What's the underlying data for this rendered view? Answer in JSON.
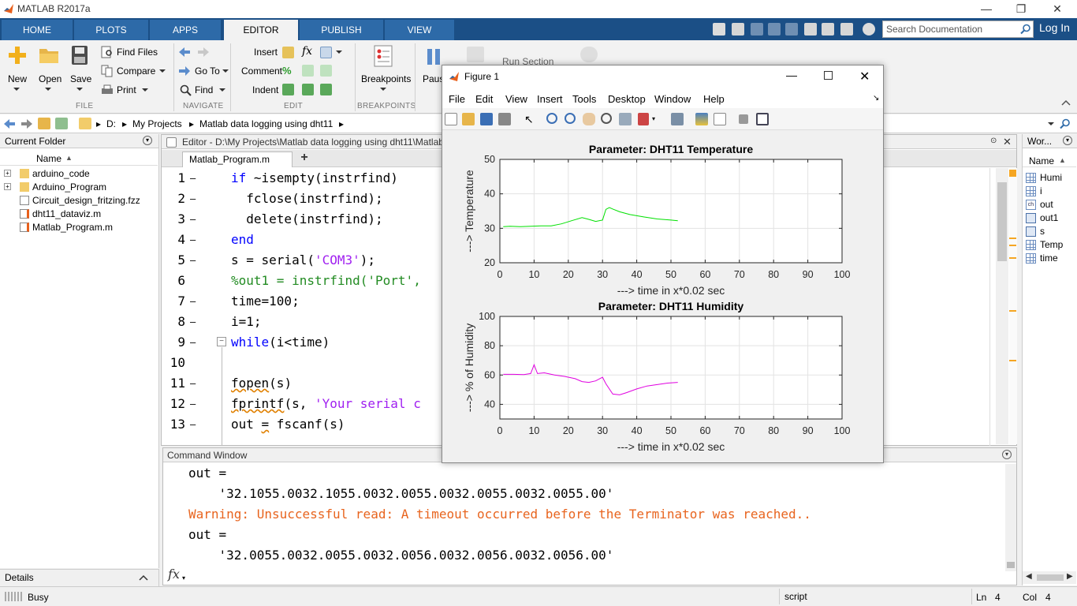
{
  "app": {
    "title": "MATLAB R2017a",
    "controls": {
      "minimize": "—",
      "maximize": "❐",
      "close": "✕"
    }
  },
  "tabs": [
    "HOME",
    "PLOTS",
    "APPS",
    "EDITOR",
    "PUBLISH",
    "VIEW"
  ],
  "active_tab": "EDITOR",
  "search": {
    "placeholder": "Search Documentation"
  },
  "login_label": "Log In",
  "ribbon": {
    "file": {
      "new": "New",
      "open": "Open",
      "save": "Save",
      "find_files": "Find Files",
      "compare": "Compare",
      "print": "Print",
      "section": "FILE"
    },
    "navigate": {
      "go_to": "Go To",
      "find": "Find",
      "section": "NAVIGATE"
    },
    "edit": {
      "insert": "Insert",
      "comment": "Comment",
      "indent": "Indent",
      "section": "EDIT"
    },
    "breakpoints": {
      "label": "Breakpoints",
      "section": "BREAKPOINTS"
    },
    "run": {
      "pause": "Pause",
      "run_section": "Run Section"
    }
  },
  "address": {
    "crumbs": [
      "D:",
      "My Projects",
      "Matlab data logging using dht11"
    ]
  },
  "current_folder": {
    "title": "Current Folder",
    "column": "Name",
    "items": [
      {
        "name": "arduino_code",
        "type": "folder"
      },
      {
        "name": "Arduino_Program",
        "type": "folder"
      },
      {
        "name": "Circuit_design_fritzing.fzz",
        "type": "file"
      },
      {
        "name": "dht11_dataviz.m",
        "type": "mfile"
      },
      {
        "name": "Matlab_Program.m",
        "type": "mfile"
      }
    ]
  },
  "details": {
    "label": "Details"
  },
  "editor": {
    "title": "Editor - D:\\My Projects\\Matlab data logging using dht11\\Matlab_Program.m",
    "tab": "Matlab_Program.m",
    "add_tab": "+",
    "lines": [
      {
        "n": "1",
        "mark": "—",
        "parts": [
          [
            "kw",
            "if "
          ],
          [
            "",
            "~isempty(instrfind)"
          ]
        ]
      },
      {
        "n": "2",
        "mark": "—",
        "parts": [
          [
            "",
            "  fclose(instrfind);"
          ]
        ]
      },
      {
        "n": "3",
        "mark": "—",
        "parts": [
          [
            "",
            "  delete(instrfind);"
          ]
        ]
      },
      {
        "n": "4",
        "mark": "—",
        "parts": [
          [
            "kw",
            "end"
          ]
        ]
      },
      {
        "n": "5",
        "mark": "—",
        "parts": [
          [
            "",
            "s = serial("
          ],
          [
            "str",
            "'COM3'"
          ],
          [
            "",
            ");"
          ]
        ]
      },
      {
        "n": "6",
        "mark": "",
        "parts": [
          [
            "cmt",
            "%out1 = instrfind('Port',"
          ]
        ]
      },
      {
        "n": "7",
        "mark": "—",
        "parts": [
          [
            "",
            "time=100;"
          ]
        ]
      },
      {
        "n": "8",
        "mark": "—",
        "parts": [
          [
            "",
            "i=1;"
          ]
        ]
      },
      {
        "n": "9",
        "mark": "—",
        "parts": [
          [
            "kw",
            "while"
          ],
          [
            "",
            "(i<time)"
          ]
        ]
      },
      {
        "n": "10",
        "mark": "",
        "parts": [
          [
            "",
            ""
          ]
        ]
      },
      {
        "n": "11",
        "mark": "—",
        "parts": [
          [
            "squig",
            "fopen"
          ],
          [
            "",
            "(s)"
          ]
        ]
      },
      {
        "n": "12",
        "mark": "—",
        "parts": [
          [
            "squig",
            "fprintf"
          ],
          [
            "",
            "(s, "
          ],
          [
            "str",
            "'Your serial c"
          ]
        ]
      },
      {
        "n": "13",
        "mark": "—",
        "parts": [
          [
            "",
            "out "
          ],
          [
            "squig",
            "="
          ],
          [
            "",
            " fscanf(s)"
          ]
        ]
      }
    ]
  },
  "command_window": {
    "title": "Command Window",
    "lines": [
      {
        "cls": "",
        "text": "out ="
      },
      {
        "cls": "",
        "text": "    '32.1055.0032.1055.0032.0055.0032.0055.0032.0055.00'"
      },
      {
        "cls": "warn",
        "text": "Warning: Unsuccessful read: A timeout occurred before the Terminator was reached.."
      },
      {
        "cls": "",
        "text": "out ="
      },
      {
        "cls": "",
        "text": "    '32.0055.0032.0055.0032.0056.0032.0056.0032.0056.00'"
      }
    ],
    "prompt": "fx"
  },
  "workspace": {
    "title": "Wor...",
    "column": "Name",
    "vars": [
      {
        "name": "Humi",
        "type": "matrix"
      },
      {
        "name": "i",
        "type": "matrix"
      },
      {
        "name": "out",
        "type": "char"
      },
      {
        "name": "out1",
        "type": "object"
      },
      {
        "name": "s",
        "type": "object"
      },
      {
        "name": "Temp",
        "type": "matrix"
      },
      {
        "name": "time",
        "type": "matrix"
      }
    ]
  },
  "status": {
    "state": "Busy",
    "mode": "script",
    "ln_label": "Ln",
    "ln": "4",
    "col_label": "Col",
    "col": "4"
  },
  "figure": {
    "title": "Figure 1",
    "menus": [
      "File",
      "Edit",
      "View",
      "Insert",
      "Tools",
      "Desktop",
      "Window",
      "Help"
    ]
  },
  "chart_data": [
    {
      "type": "line",
      "title": "Parameter: DHT11 Temperature",
      "xlabel": "---> time in x*0.02 sec",
      "ylabel": "---> Temperature",
      "xlim": [
        0,
        100
      ],
      "ylim": [
        20,
        50
      ],
      "xticks": [
        0,
        10,
        20,
        30,
        40,
        50,
        60,
        70,
        80,
        90,
        100
      ],
      "yticks": [
        20,
        30,
        40,
        50
      ],
      "grid": true,
      "color": "#00e000",
      "series": [
        {
          "x": [
            1,
            3,
            6,
            9,
            12,
            15,
            18,
            21,
            24,
            26,
            28,
            30,
            31,
            32,
            33,
            35,
            38,
            42,
            46,
            50,
            52
          ],
          "y": [
            30.5,
            30.6,
            30.5,
            30.6,
            30.7,
            30.7,
            31.3,
            32.2,
            33.1,
            32.6,
            32.0,
            32.4,
            35.5,
            36.0,
            35.6,
            34.8,
            34.0,
            33.3,
            32.7,
            32.4,
            32.2
          ]
        }
      ]
    },
    {
      "type": "line",
      "title": "Parameter: DHT11 Humidity",
      "xlabel": "---> time in x*0.02 sec",
      "ylabel": "---> % of Humidity",
      "xlim": [
        0,
        100
      ],
      "ylim": [
        30,
        100
      ],
      "xticks": [
        0,
        10,
        20,
        30,
        40,
        50,
        60,
        70,
        80,
        90,
        100
      ],
      "yticks": [
        40,
        60,
        80,
        100
      ],
      "grid": true,
      "color": "#e000e0",
      "series": [
        {
          "x": [
            1,
            4,
            7,
            9,
            10,
            11,
            13,
            16,
            19,
            22,
            24,
            26,
            28,
            30,
            31,
            33,
            35,
            37,
            40,
            43,
            46,
            49,
            52
          ],
          "y": [
            60.5,
            60.5,
            60.3,
            61.0,
            67.0,
            61.0,
            61.5,
            60.0,
            59.0,
            57.5,
            55.5,
            55.0,
            56.0,
            58.5,
            54.0,
            47.0,
            46.5,
            48.0,
            50.5,
            52.5,
            53.5,
            54.5,
            55.0
          ]
        }
      ]
    }
  ]
}
